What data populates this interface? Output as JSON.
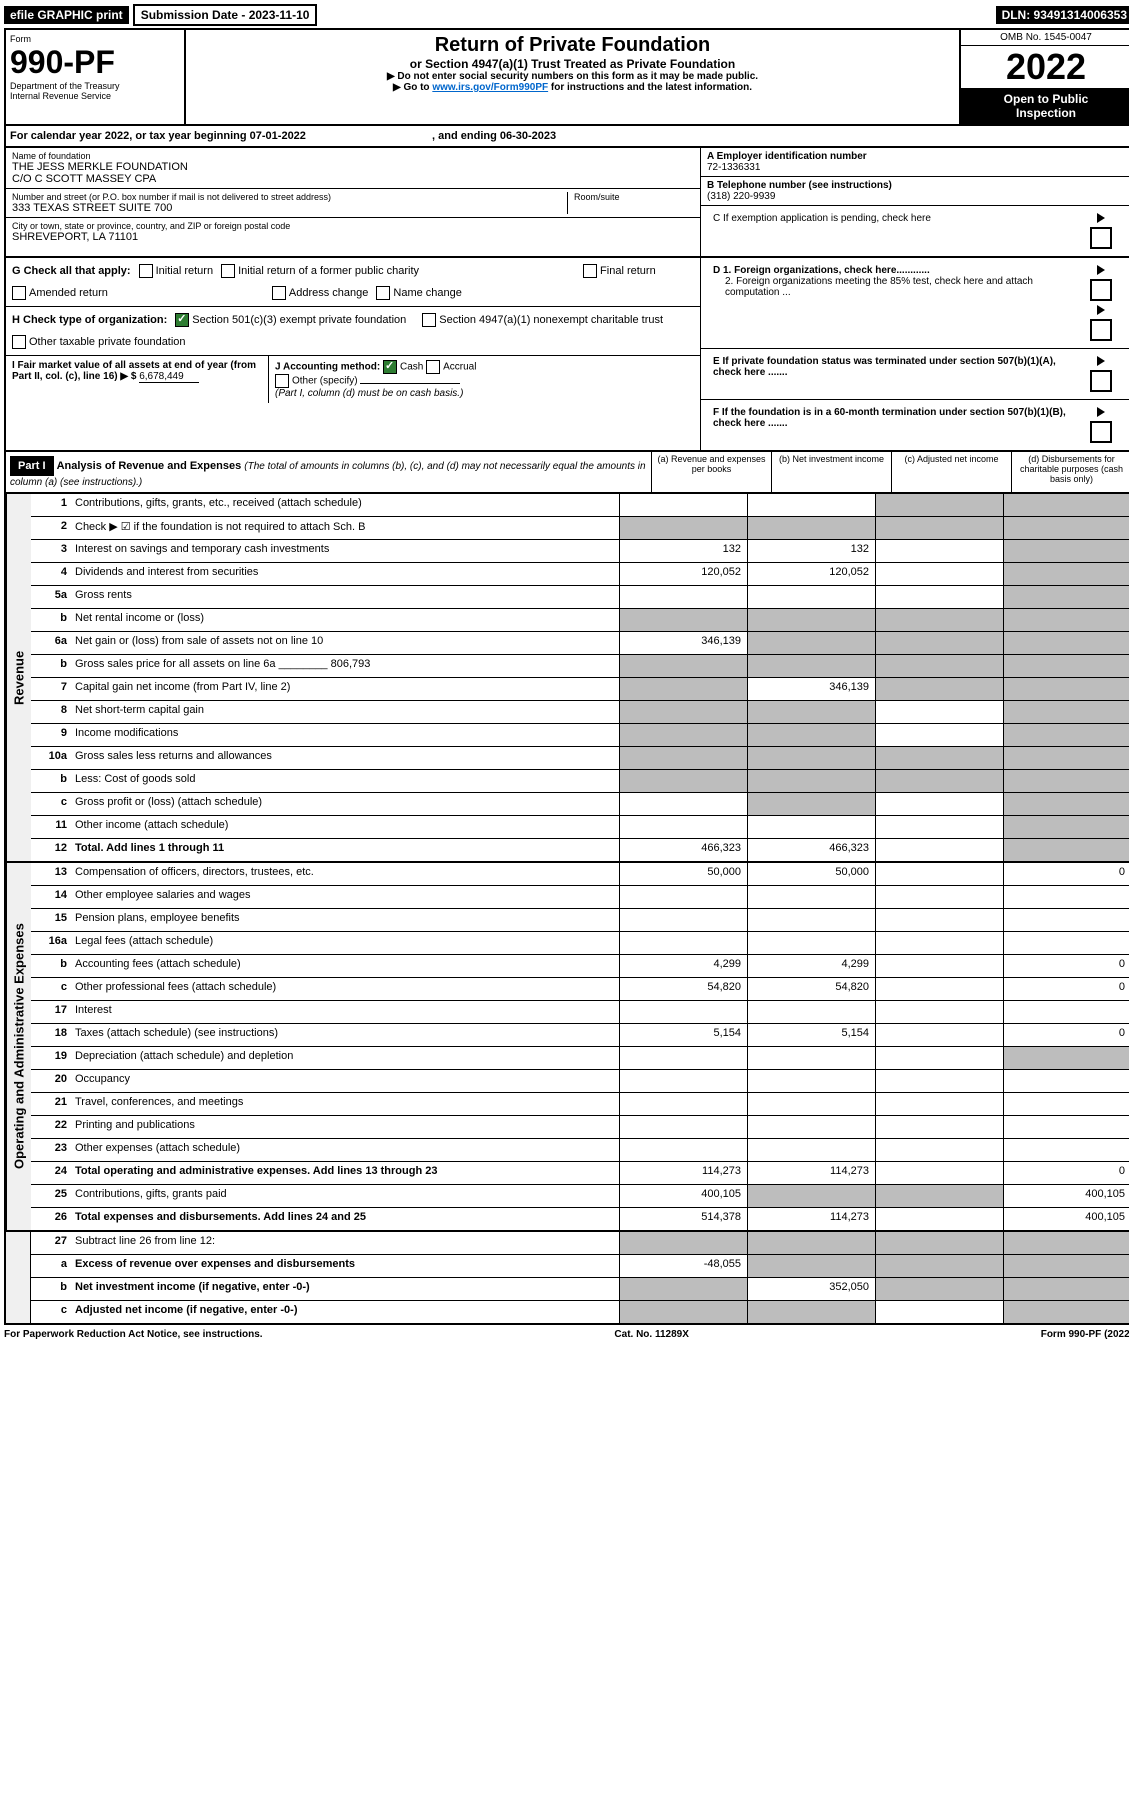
{
  "top": {
    "efile": "efile GRAPHIC print",
    "sub_label": "Submission Date - 2023-11-10",
    "dln": "DLN: 93491314006353"
  },
  "header": {
    "form": "Form",
    "number": "990-PF",
    "dept": "Department of the Treasury",
    "irs": "Internal Revenue Service",
    "title": "Return of Private Foundation",
    "subtitle": "or Section 4947(a)(1) Trust Treated as Private Foundation",
    "note1": "▶ Do not enter social security numbers on this form as it may be made public.",
    "note2_pre": "▶ Go to ",
    "note2_link": "www.irs.gov/Form990PF",
    "note2_post": " for instructions and the latest information.",
    "omb": "OMB No. 1545-0047",
    "year": "2022",
    "insp1": "Open to Public",
    "insp2": "Inspection"
  },
  "calyear": {
    "text": "For calendar year 2022, or tax year beginning 07-01-2022",
    "ending": ", and ending 06-30-2023"
  },
  "meta": {
    "name_label": "Name of foundation",
    "name1": "THE JESS MERKLE FOUNDATION",
    "name2": "C/O C SCOTT MASSEY CPA",
    "street_label": "Number and street (or P.O. box number if mail is not delivered to street address)",
    "street": "333 TEXAS STREET SUITE 700",
    "room_label": "Room/suite",
    "city_label": "City or town, state or province, country, and ZIP or foreign postal code",
    "city": "SHREVEPORT, LA  71101",
    "ein_label": "A Employer identification number",
    "ein": "72-1336331",
    "tel_label": "B Telephone number (see instructions)",
    "tel": "(318) 220-9939",
    "c_label": "C If exemption application is pending, check here",
    "d1": "D 1. Foreign organizations, check here............",
    "d2": "2. Foreign organizations meeting the 85% test, check here and attach computation ...",
    "e": "E  If private foundation status was terminated under section 507(b)(1)(A), check here .......",
    "f": "F  If the foundation is in a 60-month termination under section 507(b)(1)(B), check here .......",
    "g_label": "G Check all that apply:",
    "g_opts": [
      "Initial return",
      "Initial return of a former public charity",
      "Final return",
      "Amended return",
      "Address change",
      "Name change"
    ],
    "h_label": "H Check type of organization:",
    "h1": "Section 501(c)(3) exempt private foundation",
    "h2": "Section 4947(a)(1) nonexempt charitable trust",
    "h3": "Other taxable private foundation",
    "i_label": "I Fair market value of all assets at end of year (from Part II, col. (c), line 16) ▶ $",
    "i_val": "6,678,449",
    "j_label": "J Accounting method:",
    "j_cash": "Cash",
    "j_acc": "Accrual",
    "j_other": "Other (specify)",
    "j_note": "(Part I, column (d) must be on cash basis.)"
  },
  "part1": {
    "label": "Part I",
    "title": "Analysis of Revenue and Expenses",
    "note": " (The total of amounts in columns (b), (c), and (d) may not necessarily equal the amounts in column (a) (see instructions).)",
    "col_a": "(a) Revenue and expenses per books",
    "col_b": "(b) Net investment income",
    "col_c": "(c) Adjusted net income",
    "col_d": "(d) Disbursements for charitable purposes (cash basis only)"
  },
  "revenue_label": "Revenue",
  "expense_label": "Operating and Administrative Expenses",
  "lines": {
    "l1": {
      "n": "1",
      "d": "Contributions, gifts, grants, etc., received (attach schedule)",
      "a": "",
      "b": "",
      "c": "g",
      "dd": "g"
    },
    "l2": {
      "n": "2",
      "d": "Check ▶ ☑ if the foundation is not required to attach Sch. B",
      "a": "g",
      "b": "g",
      "c": "g",
      "dd": "g"
    },
    "l3": {
      "n": "3",
      "d": "Interest on savings and temporary cash investments",
      "a": "132",
      "b": "132",
      "c": "",
      "dd": "g"
    },
    "l4": {
      "n": "4",
      "d": "Dividends and interest from securities",
      "a": "120,052",
      "b": "120,052",
      "c": "",
      "dd": "g"
    },
    "l5a": {
      "n": "5a",
      "d": "Gross rents",
      "a": "",
      "b": "",
      "c": "",
      "dd": "g"
    },
    "l5b": {
      "n": "b",
      "d": "Net rental income or (loss)",
      "a": "g",
      "b": "g",
      "c": "g",
      "dd": "g"
    },
    "l6a": {
      "n": "6a",
      "d": "Net gain or (loss) from sale of assets not on line 10",
      "a": "346,139",
      "b": "g",
      "c": "g",
      "dd": "g"
    },
    "l6b": {
      "n": "b",
      "d": "Gross sales price for all assets on line 6a ________ 806,793",
      "a": "g",
      "b": "g",
      "c": "g",
      "dd": "g"
    },
    "l7": {
      "n": "7",
      "d": "Capital gain net income (from Part IV, line 2)",
      "a": "g",
      "b": "346,139",
      "c": "g",
      "dd": "g"
    },
    "l8": {
      "n": "8",
      "d": "Net short-term capital gain",
      "a": "g",
      "b": "g",
      "c": "",
      "dd": "g"
    },
    "l9": {
      "n": "9",
      "d": "Income modifications",
      "a": "g",
      "b": "g",
      "c": "",
      "dd": "g"
    },
    "l10a": {
      "n": "10a",
      "d": "Gross sales less returns and allowances",
      "a": "g",
      "b": "g",
      "c": "g",
      "dd": "g"
    },
    "l10b": {
      "n": "b",
      "d": "Less: Cost of goods sold",
      "a": "g",
      "b": "g",
      "c": "g",
      "dd": "g"
    },
    "l10c": {
      "n": "c",
      "d": "Gross profit or (loss) (attach schedule)",
      "a": "",
      "b": "g",
      "c": "",
      "dd": "g"
    },
    "l11": {
      "n": "11",
      "d": "Other income (attach schedule)",
      "a": "",
      "b": "",
      "c": "",
      "dd": "g"
    },
    "l12": {
      "n": "12",
      "d": "Total. Add lines 1 through 11",
      "a": "466,323",
      "b": "466,323",
      "c": "",
      "dd": "g",
      "bold": true
    },
    "l13": {
      "n": "13",
      "d": "Compensation of officers, directors, trustees, etc.",
      "a": "50,000",
      "b": "50,000",
      "c": "",
      "dd": "0"
    },
    "l14": {
      "n": "14",
      "d": "Other employee salaries and wages",
      "a": "",
      "b": "",
      "c": "",
      "dd": ""
    },
    "l15": {
      "n": "15",
      "d": "Pension plans, employee benefits",
      "a": "",
      "b": "",
      "c": "",
      "dd": ""
    },
    "l16a": {
      "n": "16a",
      "d": "Legal fees (attach schedule)",
      "a": "",
      "b": "",
      "c": "",
      "dd": ""
    },
    "l16b": {
      "n": "b",
      "d": "Accounting fees (attach schedule)",
      "a": "4,299",
      "b": "4,299",
      "c": "",
      "dd": "0"
    },
    "l16c": {
      "n": "c",
      "d": "Other professional fees (attach schedule)",
      "a": "54,820",
      "b": "54,820",
      "c": "",
      "dd": "0"
    },
    "l17": {
      "n": "17",
      "d": "Interest",
      "a": "",
      "b": "",
      "c": "",
      "dd": ""
    },
    "l18": {
      "n": "18",
      "d": "Taxes (attach schedule) (see instructions)",
      "a": "5,154",
      "b": "5,154",
      "c": "",
      "dd": "0"
    },
    "l19": {
      "n": "19",
      "d": "Depreciation (attach schedule) and depletion",
      "a": "",
      "b": "",
      "c": "",
      "dd": "g"
    },
    "l20": {
      "n": "20",
      "d": "Occupancy",
      "a": "",
      "b": "",
      "c": "",
      "dd": ""
    },
    "l21": {
      "n": "21",
      "d": "Travel, conferences, and meetings",
      "a": "",
      "b": "",
      "c": "",
      "dd": ""
    },
    "l22": {
      "n": "22",
      "d": "Printing and publications",
      "a": "",
      "b": "",
      "c": "",
      "dd": ""
    },
    "l23": {
      "n": "23",
      "d": "Other expenses (attach schedule)",
      "a": "",
      "b": "",
      "c": "",
      "dd": ""
    },
    "l24": {
      "n": "24",
      "d": "Total operating and administrative expenses. Add lines 13 through 23",
      "a": "114,273",
      "b": "114,273",
      "c": "",
      "dd": "0",
      "bold": true
    },
    "l25": {
      "n": "25",
      "d": "Contributions, gifts, grants paid",
      "a": "400,105",
      "b": "g",
      "c": "g",
      "dd": "400,105"
    },
    "l26": {
      "n": "26",
      "d": "Total expenses and disbursements. Add lines 24 and 25",
      "a": "514,378",
      "b": "114,273",
      "c": "",
      "dd": "400,105",
      "bold": true
    },
    "l27": {
      "n": "27",
      "d": "Subtract line 26 from line 12:",
      "a": "g",
      "b": "g",
      "c": "g",
      "dd": "g"
    },
    "l27a": {
      "n": "a",
      "d": "Excess of revenue over expenses and disbursements",
      "a": "-48,055",
      "b": "g",
      "c": "g",
      "dd": "g",
      "bold": true
    },
    "l27b": {
      "n": "b",
      "d": "Net investment income (if negative, enter -0-)",
      "a": "g",
      "b": "352,050",
      "c": "g",
      "dd": "g",
      "bold": true
    },
    "l27c": {
      "n": "c",
      "d": "Adjusted net income (if negative, enter -0-)",
      "a": "g",
      "b": "g",
      "c": "",
      "dd": "g",
      "bold": true
    }
  },
  "footer": {
    "pra": "For Paperwork Reduction Act Notice, see instructions.",
    "cat": "Cat. No. 11289X",
    "form": "Form 990-PF (2022)"
  }
}
